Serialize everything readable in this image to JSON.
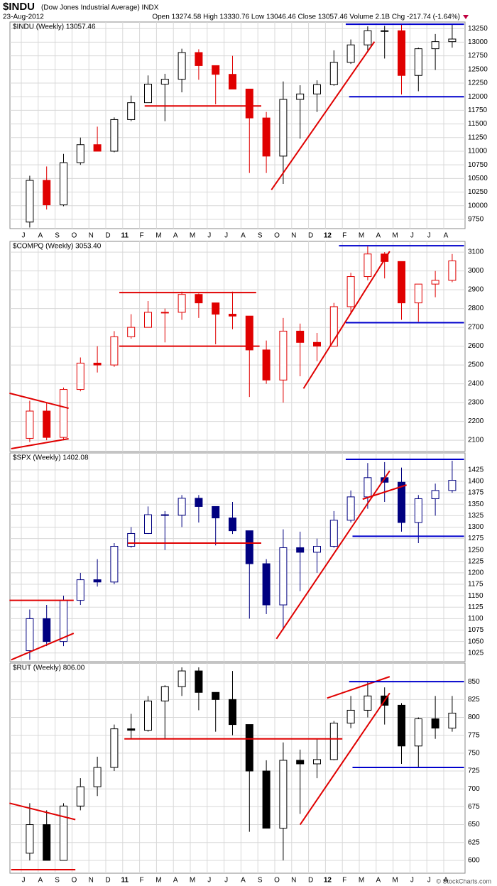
{
  "header": {
    "symbol": "$INDU",
    "name": "(Dow Jones Industrial Average) INDX",
    "date": "23-Aug-2012",
    "quote": "Open 13274.58 High 13330.76 Low 13046.46 Close 13057.46 Volume 2.1B Chg -217.74 (-1.64%)",
    "credit": "© StockCharts.com"
  },
  "chart_data": [
    {
      "type": "candlestick",
      "title": "$INDU (Weekly) 13057.46",
      "up_color": "#000000",
      "down_color": "#e00000",
      "categories": [
        "J",
        "A",
        "S",
        "O",
        "N",
        "D",
        "11",
        "F",
        "M",
        "A",
        "M",
        "J",
        "J",
        "A",
        "S",
        "O",
        "N",
        "D",
        "12",
        "F",
        "M",
        "A",
        "M",
        "J",
        "J",
        "A"
      ],
      "ylim": [
        9580,
        13370
      ],
      "yticks": [
        9750,
        10000,
        10250,
        10500,
        10750,
        11000,
        11250,
        11500,
        11750,
        12000,
        12250,
        12500,
        12750,
        13000,
        13250
      ],
      "candles": [
        [
          9700,
          10550,
          9600,
          10465
        ],
        [
          10465,
          10720,
          9930,
          10015
        ],
        [
          10015,
          10950,
          9990,
          10790
        ],
        [
          10790,
          11250,
          10750,
          11120
        ],
        [
          11120,
          11450,
          11000,
          11000
        ],
        [
          11000,
          11620,
          10980,
          11580
        ],
        [
          11580,
          12020,
          11550,
          11890
        ],
        [
          11890,
          12390,
          11890,
          12230
        ],
        [
          12230,
          12420,
          11550,
          12320
        ],
        [
          12320,
          12880,
          12080,
          12810
        ],
        [
          12810,
          12870,
          12310,
          12570
        ],
        [
          12570,
          12570,
          11860,
          12410
        ],
        [
          12410,
          12750,
          12140,
          12140
        ],
        [
          12140,
          12140,
          10600,
          11610
        ],
        [
          11610,
          11720,
          10600,
          10910
        ],
        [
          10910,
          12280,
          10400,
          11950
        ],
        [
          11950,
          12210,
          11230,
          12050
        ],
        [
          12050,
          12300,
          11720,
          12220
        ],
        [
          12220,
          12850,
          12200,
          12630
        ],
        [
          12630,
          13050,
          12600,
          12950
        ],
        [
          12950,
          13290,
          12850,
          13210
        ],
        [
          13210,
          13300,
          12700,
          13210
        ],
        [
          13210,
          13340,
          12040,
          12390
        ],
        [
          12390,
          12900,
          12100,
          12880
        ],
        [
          12880,
          13150,
          12490,
          13010
        ],
        [
          13010,
          13330,
          12900,
          13057.46
        ]
      ],
      "lines": [
        {
          "color": "#e00000",
          "x": [
            7.3,
            14.2
          ],
          "y": [
            11830,
            11830
          ]
        },
        {
          "color": "#e00000",
          "x": [
            14.8,
            20.9
          ],
          "y": [
            10290,
            13010
          ]
        },
        {
          "color": "#0000cc",
          "x": [
            19.2,
            26.2
          ],
          "y": [
            13330,
            13330
          ]
        },
        {
          "color": "#0000cc",
          "x": [
            19.4,
            26.2
          ],
          "y": [
            12000,
            12000
          ]
        }
      ]
    },
    {
      "type": "candlestick",
      "title": "$COMPQ (Weekly) 3053.40",
      "up_color": "#e00000",
      "down_color": "#e00000",
      "ylim": [
        2040,
        3157
      ],
      "yticks": [
        2100,
        2200,
        2300,
        2400,
        2500,
        2600,
        2700,
        2800,
        2900,
        3000,
        3100
      ],
      "candles": [
        [
          2110,
          2310,
          2090,
          2255
        ],
        [
          2255,
          2300,
          2100,
          2115
        ],
        [
          2115,
          2380,
          2100,
          2370
        ],
        [
          2370,
          2540,
          2360,
          2510
        ],
        [
          2510,
          2600,
          2460,
          2500
        ],
        [
          2500,
          2680,
          2490,
          2650
        ],
        [
          2650,
          2770,
          2640,
          2700
        ],
        [
          2700,
          2840,
          2700,
          2780
        ],
        [
          2780,
          2800,
          2620,
          2780
        ],
        [
          2780,
          2890,
          2740,
          2875
        ],
        [
          2875,
          2880,
          2750,
          2830
        ],
        [
          2830,
          2830,
          2610,
          2770
        ],
        [
          2770,
          2890,
          2690,
          2760
        ],
        [
          2760,
          2760,
          2330,
          2580
        ],
        [
          2580,
          2630,
          2400,
          2420
        ],
        [
          2420,
          2750,
          2300,
          2680
        ],
        [
          2680,
          2720,
          2440,
          2620
        ],
        [
          2620,
          2670,
          2520,
          2600
        ],
        [
          2600,
          2830,
          2600,
          2810
        ],
        [
          2810,
          2990,
          2780,
          2970
        ],
        [
          2970,
          3130,
          2950,
          3090
        ],
        [
          3090,
          3100,
          2960,
          3050
        ],
        [
          3050,
          3050,
          2740,
          2830
        ],
        [
          2830,
          2920,
          2730,
          2930
        ],
        [
          2930,
          3000,
          2860,
          2950
        ],
        [
          2950,
          3090,
          2940,
          3053.4
        ]
      ],
      "lines": [
        {
          "color": "#e00000",
          "x": [
            -0.7,
            2.8
          ],
          "y": [
            2350,
            2270
          ]
        },
        {
          "color": "#e00000",
          "x": [
            -0.6,
            2.8
          ],
          "y": [
            2055,
            2108
          ]
        },
        {
          "color": "#e00000",
          "x": [
            5.8,
            13.9
          ],
          "y": [
            2885,
            2885
          ]
        },
        {
          "color": "#e00000",
          "x": [
            5.8,
            14.1
          ],
          "y": [
            2600,
            2600
          ]
        },
        {
          "color": "#e00000",
          "x": [
            16.7,
            21.8
          ],
          "y": [
            2375,
            3104
          ]
        },
        {
          "color": "#0000cc",
          "x": [
            18.8,
            26.2
          ],
          "y": [
            3134,
            3134
          ]
        },
        {
          "color": "#0000cc",
          "x": [
            19.2,
            26.2
          ],
          "y": [
            2725,
            2725
          ]
        }
      ]
    },
    {
      "type": "candlestick",
      "title": "$SPX (Weekly) 1402.08",
      "up_color": "#000080",
      "down_color": "#000080",
      "ylim": [
        1006,
        1462
      ],
      "yticks": [
        1025,
        1050,
        1075,
        1100,
        1125,
        1150,
        1175,
        1200,
        1225,
        1250,
        1275,
        1300,
        1325,
        1350,
        1375,
        1400,
        1425
      ],
      "candles": [
        [
          1030,
          1120,
          1010,
          1100
        ],
        [
          1100,
          1130,
          1040,
          1050
        ],
        [
          1050,
          1150,
          1040,
          1140
        ],
        [
          1140,
          1200,
          1130,
          1185
        ],
        [
          1185,
          1230,
          1170,
          1180
        ],
        [
          1180,
          1265,
          1175,
          1258
        ],
        [
          1258,
          1300,
          1255,
          1286
        ],
        [
          1286,
          1345,
          1285,
          1327
        ],
        [
          1327,
          1335,
          1250,
          1326
        ],
        [
          1326,
          1370,
          1300,
          1363
        ],
        [
          1363,
          1370,
          1310,
          1345
        ],
        [
          1345,
          1345,
          1260,
          1320
        ],
        [
          1320,
          1355,
          1285,
          1292
        ],
        [
          1292,
          1292,
          1100,
          1220
        ],
        [
          1220,
          1230,
          1110,
          1130
        ],
        [
          1130,
          1295,
          1075,
          1255
        ],
        [
          1255,
          1290,
          1160,
          1245
        ],
        [
          1245,
          1275,
          1200,
          1258
        ],
        [
          1258,
          1335,
          1255,
          1315
        ],
        [
          1315,
          1380,
          1310,
          1366
        ],
        [
          1366,
          1440,
          1340,
          1408
        ],
        [
          1408,
          1442,
          1355,
          1398
        ],
        [
          1398,
          1430,
          1290,
          1310
        ],
        [
          1310,
          1370,
          1265,
          1362
        ],
        [
          1362,
          1395,
          1325,
          1380
        ],
        [
          1380,
          1445,
          1375,
          1402.08
        ]
      ],
      "lines": [
        {
          "color": "#e00000",
          "x": [
            -0.7,
            3.1
          ],
          "y": [
            1140,
            1140
          ]
        },
        {
          "color": "#e00000",
          "x": [
            -0.6,
            3.1
          ],
          "y": [
            1010,
            1068
          ]
        },
        {
          "color": "#e00000",
          "x": [
            6.3,
            14.2
          ],
          "y": [
            1265,
            1265
          ]
        },
        {
          "color": "#e00000",
          "x": [
            15.1,
            21.8
          ],
          "y": [
            1056,
            1423
          ]
        },
        {
          "color": "#e00000",
          "x": [
            20.2,
            22.8
          ],
          "y": [
            1361,
            1392
          ]
        },
        {
          "color": "#0000cc",
          "x": [
            19.2,
            26.2
          ],
          "y": [
            1448,
            1448
          ]
        },
        {
          "color": "#0000cc",
          "x": [
            19.6,
            26.2
          ],
          "y": [
            1280,
            1280
          ]
        }
      ]
    },
    {
      "type": "candlestick",
      "title": "$RUT (Weekly) 806.00",
      "up_color": "#000000",
      "down_color": "#000000",
      "categories": [
        "J",
        "A",
        "S",
        "O",
        "N",
        "D",
        "11",
        "F",
        "M",
        "A",
        "M",
        "J",
        "J",
        "A",
        "S",
        "O",
        "N",
        "D",
        "12",
        "F",
        "M",
        "A",
        "M",
        "J",
        "J",
        "A"
      ],
      "ylim": [
        582,
        876
      ],
      "yticks": [
        600,
        625,
        650,
        675,
        700,
        725,
        750,
        775,
        800,
        825,
        850
      ],
      "candles": [
        [
          610,
          680,
          600,
          650
        ],
        [
          650,
          670,
          600,
          600
        ],
        [
          600,
          680,
          600,
          676
        ],
        [
          676,
          715,
          670,
          703
        ],
        [
          703,
          745,
          690,
          730
        ],
        [
          730,
          790,
          725,
          784
        ],
        [
          784,
          805,
          770,
          782
        ],
        [
          782,
          830,
          780,
          823
        ],
        [
          823,
          845,
          770,
          843
        ],
        [
          843,
          870,
          830,
          865
        ],
        [
          865,
          870,
          810,
          835
        ],
        [
          835,
          835,
          780,
          825
        ],
        [
          825,
          865,
          775,
          790
        ],
        [
          790,
          790,
          640,
          725
        ],
        [
          725,
          740,
          645,
          645
        ],
        [
          645,
          765,
          600,
          740
        ],
        [
          740,
          755,
          665,
          735
        ],
        [
          735,
          770,
          715,
          741
        ],
        [
          741,
          795,
          740,
          792
        ],
        [
          792,
          830,
          785,
          810
        ],
        [
          810,
          850,
          800,
          830
        ],
        [
          830,
          842,
          790,
          817
        ],
        [
          817,
          820,
          735,
          760
        ],
        [
          760,
          800,
          730,
          798
        ],
        [
          798,
          830,
          770,
          785
        ],
        [
          785,
          830,
          780,
          806.0
        ]
      ],
      "lines": [
        {
          "color": "#e00000",
          "x": [
            -0.7,
            3.2
          ],
          "y": [
            680,
            657
          ]
        },
        {
          "color": "#e00000",
          "x": [
            -0.6,
            3.2
          ],
          "y": [
            587,
            587
          ]
        },
        {
          "color": "#e00000",
          "x": [
            6.1,
            19.0
          ],
          "y": [
            770,
            770
          ]
        },
        {
          "color": "#e00000",
          "x": [
            16.5,
            21.8
          ],
          "y": [
            650,
            834
          ]
        },
        {
          "color": "#e00000",
          "x": [
            18.1,
            21.8
          ],
          "y": [
            827,
            857
          ]
        },
        {
          "color": "#0000cc",
          "x": [
            19.4,
            26.2
          ],
          "y": [
            850,
            850
          ]
        },
        {
          "color": "#0000cc",
          "x": [
            19.6,
            26.2
          ],
          "y": [
            730,
            730
          ]
        }
      ]
    }
  ]
}
